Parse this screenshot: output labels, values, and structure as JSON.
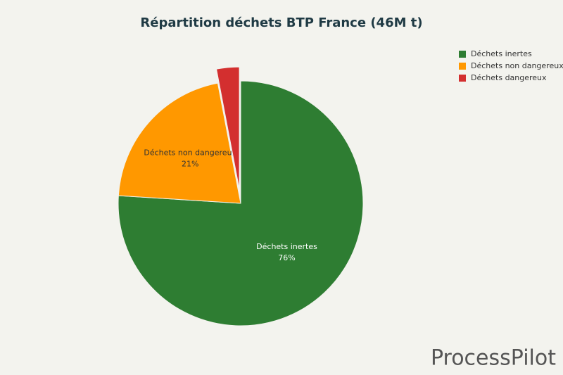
{
  "chart_data": {
    "type": "pie",
    "title": "Répartition déchets BTP France (46M t)",
    "categories": [
      "Déchets inertes",
      "Déchets non dangereux",
      "Déchets dangereux"
    ],
    "values": [
      76,
      21,
      3
    ],
    "value_labels": [
      "76%",
      "21%",
      null
    ],
    "colors": [
      "#2e7d32",
      "#ff9800",
      "#d32f2f"
    ],
    "legend": "top-right"
  },
  "watermark": "ProcessPilot"
}
